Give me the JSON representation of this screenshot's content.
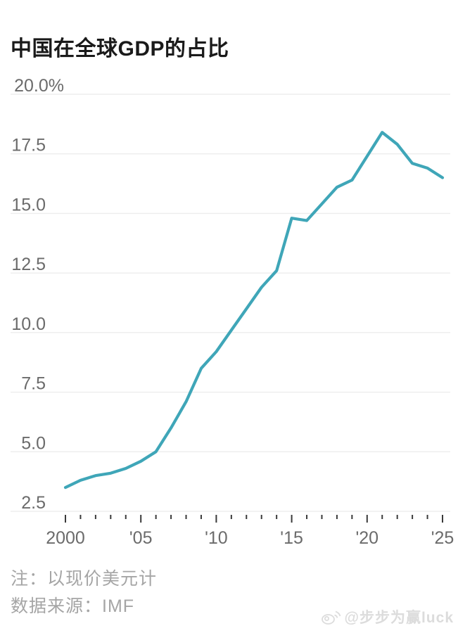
{
  "header": {
    "title": "中国在全球GDP的占比"
  },
  "chart_data": {
    "type": "line",
    "title": "中国在全球GDP的占比",
    "unit": "%",
    "x": [
      2000,
      2001,
      2002,
      2003,
      2004,
      2005,
      2006,
      2007,
      2008,
      2009,
      2010,
      2011,
      2012,
      2013,
      2014,
      2015,
      2016,
      2017,
      2018,
      2019,
      2020,
      2021,
      2022,
      2023,
      2024,
      2025
    ],
    "series": [
      {
        "name": "中国在全球GDP的占比",
        "values": [
          3.5,
          3.8,
          4.0,
          4.1,
          4.3,
          4.6,
          5.0,
          6.0,
          7.1,
          8.5,
          9.2,
          10.1,
          11.0,
          11.9,
          12.6,
          14.8,
          14.7,
          15.4,
          16.1,
          16.4,
          17.4,
          18.4,
          17.9,
          17.1,
          16.9,
          16.5
        ]
      }
    ],
    "ylim": [
      2.5,
      20.0
    ],
    "yticks": [
      {
        "value": 2.5,
        "label": "2.5"
      },
      {
        "value": 5.0,
        "label": "5.0"
      },
      {
        "value": 7.5,
        "label": "7.5"
      },
      {
        "value": 10.0,
        "label": "10.0"
      },
      {
        "value": 12.5,
        "label": "12.5"
      },
      {
        "value": 15.0,
        "label": "15.0"
      },
      {
        "value": 17.5,
        "label": "17.5"
      },
      {
        "value": 20.0,
        "label": "20.0%"
      }
    ],
    "xticks_minor_every_year": true,
    "xticks_major": [
      {
        "value": 2000,
        "label": "2000"
      },
      {
        "value": 2005,
        "label": "'05"
      },
      {
        "value": 2010,
        "label": "'10"
      },
      {
        "value": 2015,
        "label": "'15"
      },
      {
        "value": 2020,
        "label": "'20"
      },
      {
        "value": 2025,
        "label": "'25"
      }
    ],
    "grid": "horizontal",
    "legend": "none"
  },
  "colors": {
    "line": "#3fa6b8",
    "grid": "#ededed",
    "tick": "#3a3a3a",
    "axis_label": "#6b6b6b",
    "title": "#1a1a1a",
    "note": "#a5a5a5",
    "watermark": "#dcdcdc"
  },
  "footer": {
    "note": "注：以现价美元计",
    "source": "数据来源：IMF"
  },
  "watermark": {
    "icon": "weibo-icon",
    "handle": "@步步为赢luck"
  }
}
